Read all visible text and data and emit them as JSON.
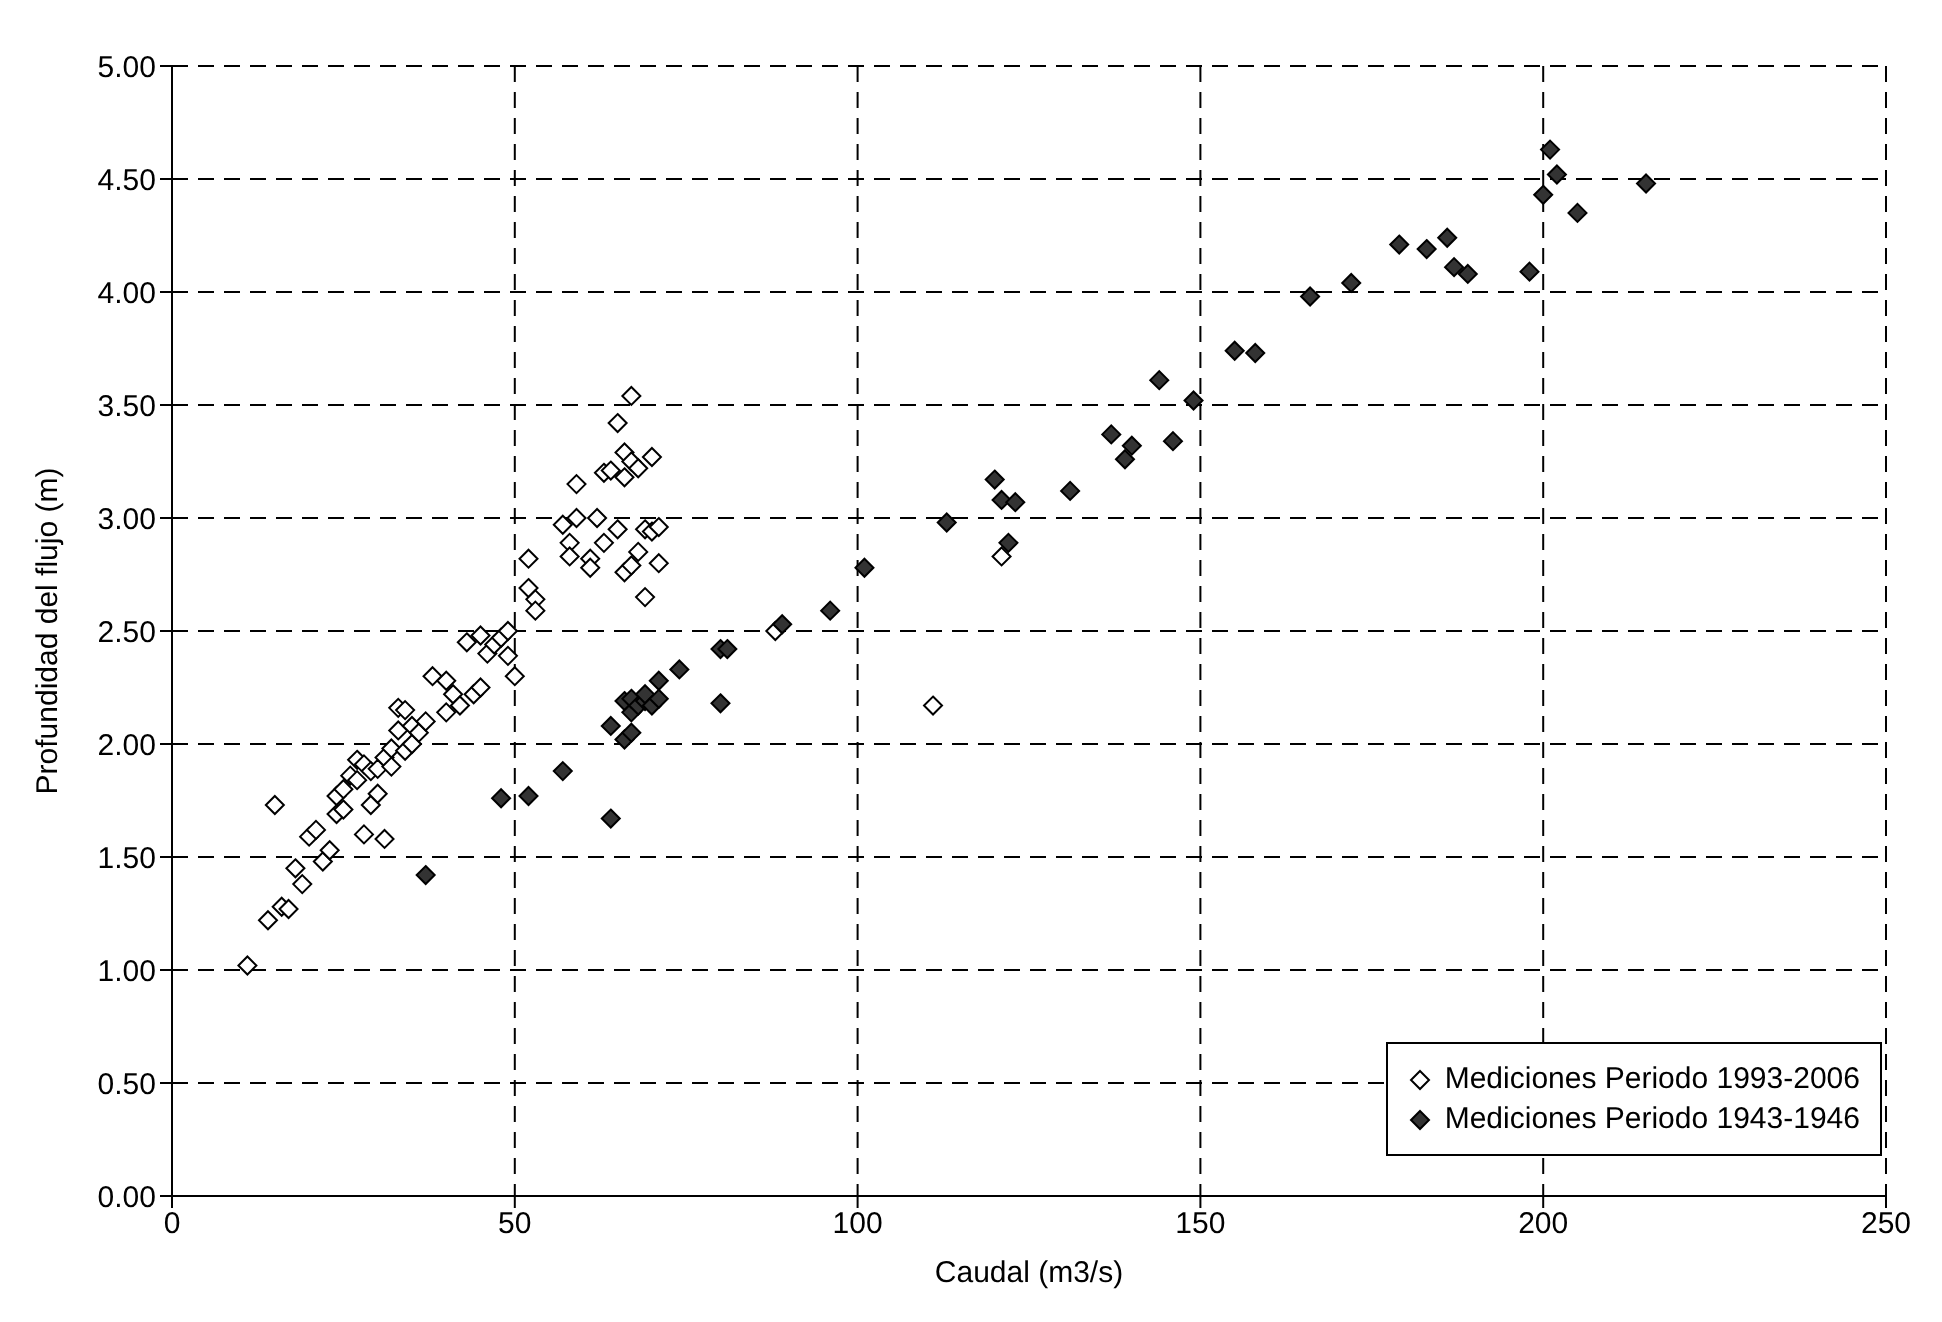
{
  "chart_data": {
    "type": "scatter",
    "xlabel": "Caudal (m3/s)",
    "ylabel": "Profundidad del flujo (m)",
    "xlim": [
      0,
      250
    ],
    "xticks": [
      0,
      50,
      100,
      150,
      200,
      250
    ],
    "ylim": [
      0,
      5
    ],
    "yticks": [
      {
        "value": 0,
        "label": "0.00"
      },
      {
        "value": 0.5,
        "label": "0.50"
      },
      {
        "value": 1,
        "label": "1.00"
      },
      {
        "value": 1.5,
        "label": "1.50"
      },
      {
        "value": 2,
        "label": "2.00"
      },
      {
        "value": 2.5,
        "label": "2.50"
      },
      {
        "value": 3,
        "label": "3.00"
      },
      {
        "value": 3.5,
        "label": "3.50"
      },
      {
        "value": 4,
        "label": "4.00"
      },
      {
        "value": 4.5,
        "label": "4.50"
      },
      {
        "value": 5,
        "label": "5.00"
      }
    ],
    "grid": true,
    "legend": "bottom right",
    "marker": "diamond",
    "series": [
      {
        "name": "Mediciones Periodo 1993-2006",
        "color": "#ffffff",
        "x": [
          11,
          14,
          15,
          16,
          17,
          18,
          19,
          20,
          21,
          22,
          23,
          24,
          24,
          25,
          25,
          26,
          27,
          27,
          28,
          28,
          29,
          29,
          30,
          30,
          31,
          31,
          32,
          32,
          33,
          33,
          34,
          34,
          35,
          35,
          36,
          37,
          38,
          40,
          40,
          41,
          42,
          43,
          44,
          45,
          45,
          46,
          47,
          48,
          49,
          49,
          50,
          52,
          52,
          53,
          53,
          57,
          58,
          58,
          59,
          59,
          61,
          61,
          62,
          63,
          63,
          64,
          65,
          65,
          66,
          66,
          66,
          67,
          67,
          67,
          68,
          68,
          69,
          69,
          70,
          70,
          71,
          71,
          88,
          111,
          121
        ],
        "values": [
          1.02,
          1.22,
          1.73,
          1.28,
          1.27,
          1.45,
          1.38,
          1.59,
          1.62,
          1.48,
          1.53,
          1.69,
          1.77,
          1.71,
          1.8,
          1.86,
          1.84,
          1.93,
          1.6,
          1.91,
          1.73,
          1.88,
          1.78,
          1.89,
          1.94,
          1.58,
          1.98,
          1.9,
          2.06,
          2.16,
          1.97,
          2.15,
          2.0,
          2.08,
          2.05,
          2.1,
          2.3,
          2.28,
          2.14,
          2.22,
          2.17,
          2.45,
          2.22,
          2.25,
          2.48,
          2.4,
          2.44,
          2.47,
          2.5,
          2.39,
          2.3,
          2.82,
          2.69,
          2.64,
          2.59,
          2.97,
          2.89,
          2.83,
          3.15,
          3.0,
          2.82,
          2.78,
          3.0,
          2.89,
          3.2,
          3.21,
          3.42,
          2.95,
          2.76,
          3.29,
          3.18,
          3.54,
          3.25,
          2.79,
          3.22,
          2.85,
          2.95,
          2.65,
          2.94,
          3.27,
          2.8,
          2.96,
          2.5,
          2.17,
          2.83
        ]
      },
      {
        "name": "Mediciones Periodo 1943-1946",
        "color": "#333333",
        "x": [
          37,
          48,
          52,
          57,
          64,
          64,
          66,
          66,
          67,
          67,
          67,
          68,
          69,
          69,
          70,
          71,
          71,
          74,
          80,
          80,
          81,
          89,
          96,
          101,
          113,
          120,
          121,
          122,
          123,
          131,
          137,
          139,
          140,
          144,
          146,
          149,
          155,
          158,
          166,
          172,
          179,
          183,
          186,
          187,
          189,
          198,
          200,
          201,
          202,
          205,
          215
        ],
        "values": [
          1.42,
          1.76,
          1.77,
          1.88,
          2.08,
          1.67,
          2.02,
          2.19,
          2.05,
          2.14,
          2.2,
          2.17,
          2.19,
          2.22,
          2.17,
          2.28,
          2.2,
          2.33,
          2.42,
          2.18,
          2.42,
          2.53,
          2.59,
          2.78,
          2.98,
          3.17,
          3.08,
          2.89,
          3.07,
          3.12,
          3.37,
          3.26,
          3.32,
          3.61,
          3.34,
          3.52,
          3.74,
          3.73,
          3.98,
          4.04,
          4.21,
          4.19,
          4.24,
          4.11,
          4.08,
          4.09,
          4.43,
          4.63,
          4.52,
          4.35,
          4.48
        ]
      }
    ]
  }
}
